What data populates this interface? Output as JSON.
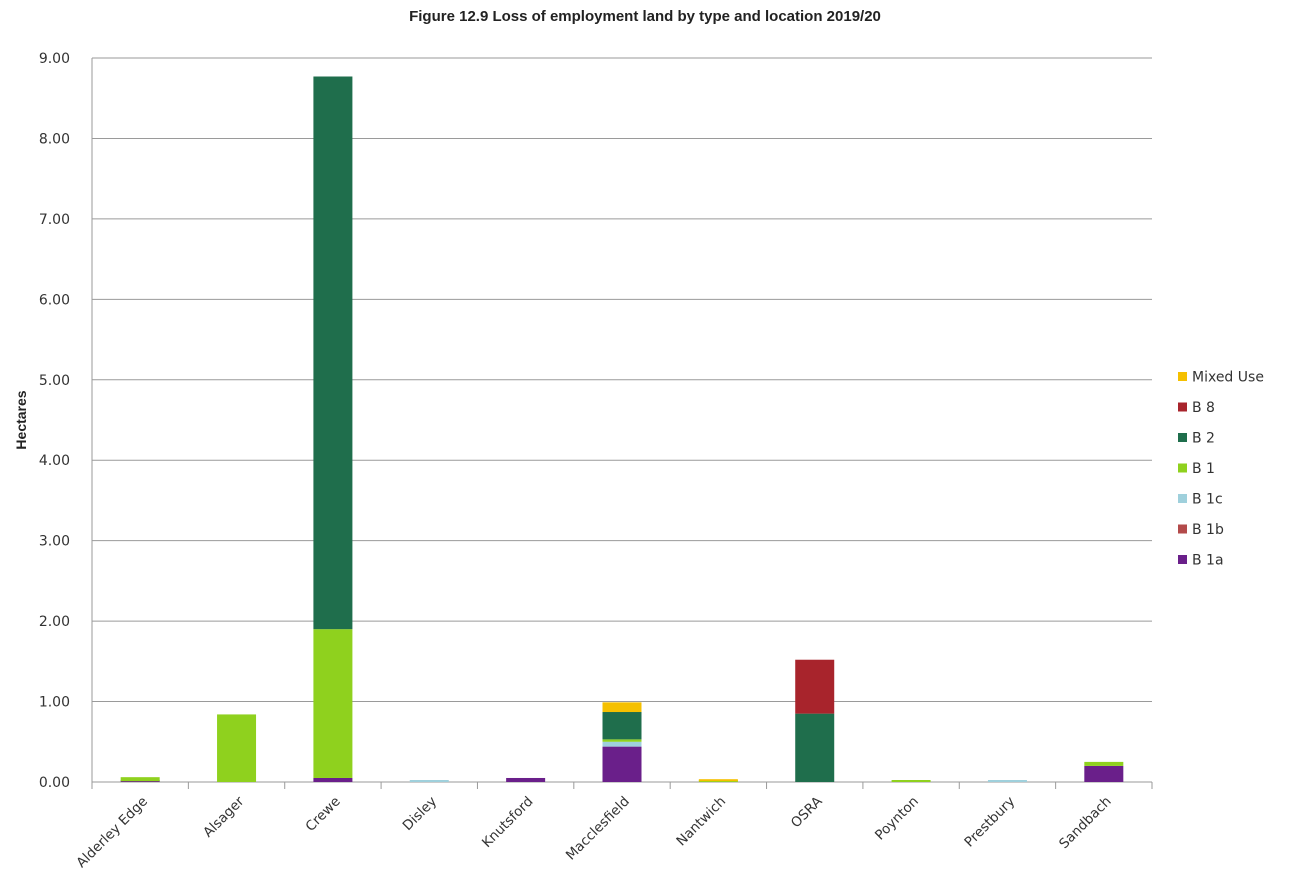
{
  "chart_data": {
    "type": "bar",
    "stacked": true,
    "title": "Figure 12.9 Loss of employment land by type and location 2019/20",
    "xlabel": "",
    "ylabel": "Hectares",
    "ylim": [
      0,
      9
    ],
    "yticks": [
      "0.00",
      "1.00",
      "2.00",
      "3.00",
      "4.00",
      "5.00",
      "6.00",
      "7.00",
      "8.00",
      "9.00"
    ],
    "grid": true,
    "legend_position": "right",
    "categories": [
      "Alderley Edge",
      "Alsager",
      "Crewe",
      "Disley",
      "Knutsford",
      "Macclesfield",
      "Nantwich",
      "OSRA",
      "Poynton",
      "Prestbury",
      "Sandbach"
    ],
    "series": [
      {
        "name": "B 1a",
        "color": "#6a1f8a",
        "values": [
          0.01,
          0,
          0.05,
          0,
          0.05,
          0.44,
          0,
          0,
          0,
          0,
          0.2
        ]
      },
      {
        "name": "B 1b",
        "color": "#b34a4a",
        "values": [
          0,
          0,
          0,
          0,
          0,
          0,
          0,
          0,
          0,
          0,
          0
        ]
      },
      {
        "name": "B 1c",
        "color": "#9fd0dc",
        "values": [
          0,
          0,
          0,
          0.01,
          0,
          0.06,
          0,
          0,
          0,
          0.01,
          0
        ]
      },
      {
        "name": "B 1",
        "color": "#8fd11e",
        "values": [
          0.05,
          0.84,
          1.85,
          0,
          0,
          0.03,
          0.01,
          0,
          0.02,
          0,
          0.05
        ]
      },
      {
        "name": "B 2",
        "color": "#1f6e4c",
        "values": [
          0,
          0,
          6.87,
          0,
          0,
          0.34,
          0,
          0.85,
          0,
          0,
          0
        ]
      },
      {
        "name": "B 8",
        "color": "#a8242c",
        "values": [
          0,
          0,
          0,
          0,
          0,
          0,
          0,
          0.67,
          0,
          0,
          0
        ]
      },
      {
        "name": "Mixed Use",
        "color": "#f5c000",
        "values": [
          0,
          0,
          0,
          0,
          0,
          0.12,
          0.02,
          0,
          0,
          0,
          0
        ]
      }
    ],
    "legend_order": [
      "Mixed Use",
      "B 8",
      "B 2",
      "B 1",
      "B 1c",
      "B 1b",
      "B 1a"
    ]
  }
}
